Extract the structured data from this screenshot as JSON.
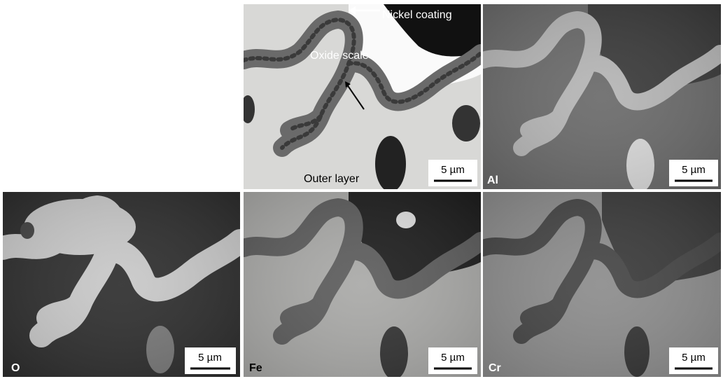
{
  "panels": [
    {
      "annotations": [
        "Nickel coating",
        "Oxide scale",
        "Outer layer"
      ],
      "scale_bar": "5 µm"
    },
    {
      "label": "Al",
      "scale_bar": "5 µm"
    },
    {
      "label": "O",
      "scale_bar": "5 µm"
    },
    {
      "label": "Fe",
      "scale_bar": "5 µm"
    },
    {
      "label": "Cr",
      "scale_bar": "5 µm"
    }
  ]
}
